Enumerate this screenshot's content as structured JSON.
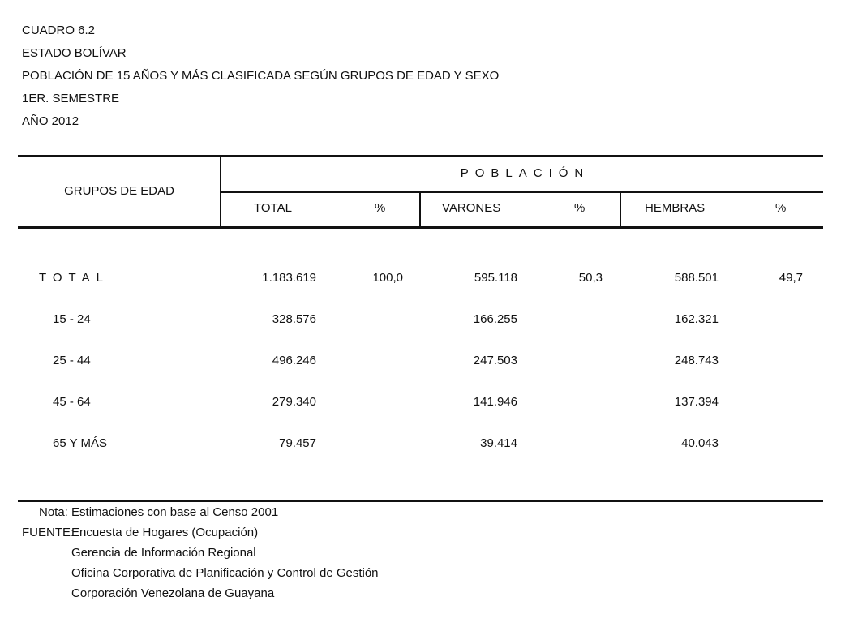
{
  "title_lines": [
    "CUADRO 6.2",
    "ESTADO BOLÍVAR",
    "POBLACIÓN DE 15 AÑOS Y MÁS CLASIFICADA SEGÚN GRUPOS DE EDAD Y SEXO",
    "1ER. SEMESTRE",
    "AÑO 2012"
  ],
  "table": {
    "row_header": "GRUPOS DE EDAD",
    "group_header": "POBLACIÓN",
    "columns": [
      "TOTAL",
      "%",
      "VARONES",
      "%",
      "HEMBRAS",
      "%"
    ],
    "rows": [
      {
        "label": "TOTAL",
        "values": [
          "1.183.619",
          "100,0",
          "595.118",
          "50,3",
          "588.501",
          "49,7"
        ]
      },
      {
        "label": "15 - 24",
        "values": [
          "328.576",
          "",
          "166.255",
          "",
          "162.321",
          ""
        ]
      },
      {
        "label": "25 - 44",
        "values": [
          "496.246",
          "",
          "247.503",
          "",
          "248.743",
          ""
        ]
      },
      {
        "label": "45 - 64",
        "values": [
          "279.340",
          "",
          "141.946",
          "",
          "137.394",
          ""
        ]
      },
      {
        "label": "65 Y MÁS",
        "values": [
          "79.457",
          "",
          "39.414",
          "",
          "40.043",
          ""
        ]
      }
    ]
  },
  "footer": {
    "note": "Nota: Estimaciones con base al Censo 2001",
    "source_label": "FUENTE:",
    "source_lines": [
      "Encuesta de Hogares (Ocupación)",
      "Gerencia de Información Regional",
      "Oficina Corporativa de Planificación y Control de Gestión",
      "Corporación Venezolana de Guayana"
    ]
  }
}
